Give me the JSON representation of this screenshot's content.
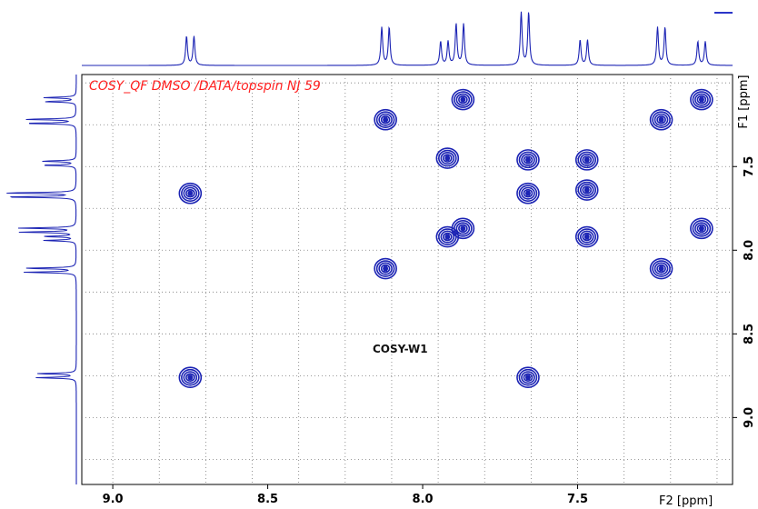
{
  "chart_data": {
    "type": "scatter",
    "subtype": "2D NMR COSY contour plot",
    "title": "COSY_QF DMSO /DATA/topspin NJ 59",
    "annotation": "COSY-W1",
    "x_axis": {
      "label": "F2 [ppm]",
      "range": [
        9.1,
        7.0
      ],
      "reversed": true,
      "ticks": [
        9.0,
        8.5,
        8.0,
        7.5
      ],
      "tick_labels": [
        "9.0",
        "8.5",
        "8.0",
        "7.5"
      ],
      "grid_ppm": [
        9.0,
        8.85,
        8.7,
        8.55,
        8.4,
        8.25,
        8.1,
        7.95,
        7.8,
        7.65,
        7.5,
        7.35,
        7.2,
        7.05
      ]
    },
    "y_axis": {
      "label": "F1 [ppm]",
      "range": [
        6.95,
        9.4
      ],
      "reversed": true,
      "ticks": [
        7.5,
        8.0,
        8.5,
        9.0
      ],
      "tick_labels": [
        "7.5",
        "8.0",
        "8.5",
        "9.0"
      ],
      "grid_ppm": [
        7.0,
        7.25,
        7.5,
        7.75,
        8.0,
        8.25,
        8.5,
        8.75,
        9.0,
        9.25
      ]
    },
    "grid": true,
    "color": "#1c24b4",
    "peaks": [
      {
        "f2": 8.75,
        "f1": 7.66
      },
      {
        "f2": 8.75,
        "f1": 8.76
      },
      {
        "f2": 8.12,
        "f1": 7.22
      },
      {
        "f2": 8.12,
        "f1": 8.11
      },
      {
        "f2": 7.92,
        "f1": 7.45
      },
      {
        "f2": 7.92,
        "f1": 7.92
      },
      {
        "f2": 7.87,
        "f1": 7.1
      },
      {
        "f2": 7.87,
        "f1": 7.87
      },
      {
        "f2": 7.66,
        "f1": 7.46
      },
      {
        "f2": 7.66,
        "f1": 7.66
      },
      {
        "f2": 7.66,
        "f1": 8.76
      },
      {
        "f2": 7.47,
        "f1": 7.46
      },
      {
        "f2": 7.47,
        "f1": 7.64
      },
      {
        "f2": 7.47,
        "f1": 7.92
      },
      {
        "f2": 7.23,
        "f1": 7.22
      },
      {
        "f2": 7.23,
        "f1": 8.11
      },
      {
        "f2": 7.1,
        "f1": 7.1
      },
      {
        "f2": 7.1,
        "f1": 7.87
      }
    ],
    "projection_peaks": [
      {
        "ppm": 8.75,
        "height": 0.55
      },
      {
        "ppm": 8.12,
        "height": 0.72
      },
      {
        "ppm": 7.93,
        "height": 0.45
      },
      {
        "ppm": 7.88,
        "height": 0.78
      },
      {
        "ppm": 7.67,
        "height": 1.0
      },
      {
        "ppm": 7.48,
        "height": 0.48
      },
      {
        "ppm": 7.23,
        "height": 0.72
      },
      {
        "ppm": 7.1,
        "height": 0.45
      }
    ]
  }
}
